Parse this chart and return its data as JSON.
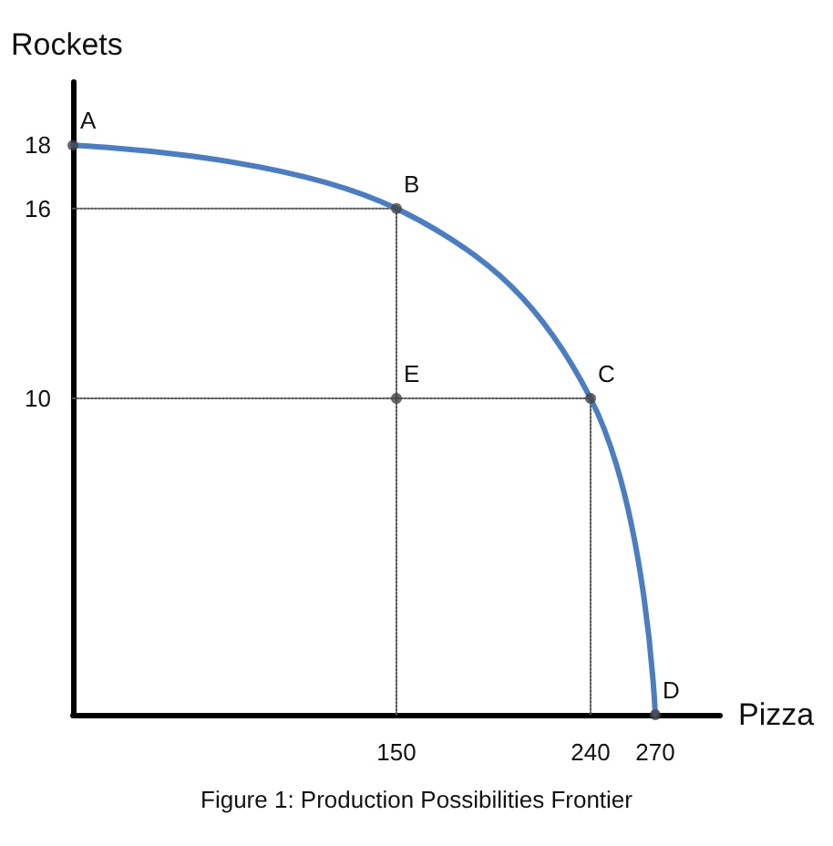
{
  "chart_data": {
    "type": "line",
    "xlabel": "Pizza",
    "ylabel": "Rockets",
    "xlim": [
      0,
      300
    ],
    "ylim": [
      0,
      20
    ],
    "xticks": [
      150,
      240,
      270
    ],
    "yticks": [
      10,
      16,
      18
    ],
    "grid": false,
    "series": [
      {
        "color": "#555555",
        "line_style": "dotted",
        "marker": "none",
        "x": [
          0,
          150,
          150
        ],
        "values": [
          16,
          16,
          0
        ]
      },
      {
        "color": "#555555",
        "line_style": "dotted",
        "marker": "none",
        "x": [
          0,
          240,
          240
        ],
        "values": [
          10,
          10,
          0
        ]
      },
      {
        "color": "#4a7ec4",
        "line_style": "solid",
        "marker": "none",
        "x": [
          0,
          150,
          240,
          270
        ],
        "values": [
          18,
          16,
          10,
          0
        ]
      },
      {
        "type": "scatter",
        "color": "#444444",
        "marker": "circle",
        "x": [
          0,
          150,
          240,
          270,
          150
        ],
        "values": [
          18,
          16,
          10,
          0,
          10
        ]
      }
    ],
    "annotations": [
      {
        "text": "A",
        "x": 0,
        "y": 18
      },
      {
        "text": "B",
        "x": 150,
        "y": 16
      },
      {
        "text": "C",
        "x": 240,
        "y": 10
      },
      {
        "text": "D",
        "x": 270,
        "y": 0
      },
      {
        "text": "E",
        "x": 150,
        "y": 10
      },
      "Figure 1: Production Possibilities Frontier"
    ]
  }
}
